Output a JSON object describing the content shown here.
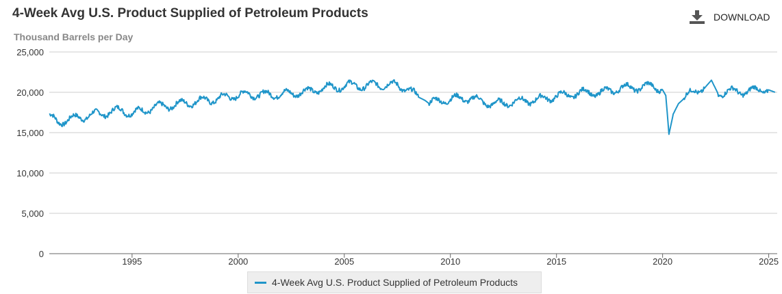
{
  "header": {
    "title": "4-Week Avg U.S. Product Supplied of Petroleum Products",
    "download_label": "DOWNLOAD"
  },
  "colors": {
    "series": "#1f95c9",
    "grid": "#cccccc",
    "axis": "#666666"
  },
  "chart_data": {
    "type": "line",
    "title": "4-Week Avg U.S. Product Supplied of Petroleum Products",
    "ylabel": "Thousand Barrels per Day",
    "xlabel": "",
    "ylim": [
      0,
      25000
    ],
    "xlim": [
      1991.1,
      2025.4
    ],
    "y_ticks": [
      0,
      5000,
      10000,
      15000,
      20000,
      25000
    ],
    "y_tick_labels": [
      "0",
      "5,000",
      "10,000",
      "15,000",
      "20,000",
      "25,000"
    ],
    "x_ticks": [
      1995,
      2000,
      2005,
      2010,
      2015,
      2020,
      2025
    ],
    "x_tick_labels": [
      "1995",
      "2000",
      "2005",
      "2010",
      "2015",
      "2020",
      "2025"
    ],
    "grid": true,
    "legend": "bottom-center",
    "series": [
      {
        "name": "4-Week Avg U.S. Product Supplied of Petroleum Products",
        "x": [
          1991.1,
          1991.5,
          1992.0,
          1992.5,
          1993.0,
          1993.5,
          1994.0,
          1994.5,
          1995.0,
          1995.5,
          1996.0,
          1996.5,
          1997.0,
          1997.5,
          1998.0,
          1998.5,
          1999.0,
          1999.5,
          2000.0,
          2000.5,
          2001.0,
          2001.5,
          2002.0,
          2002.5,
          2003.0,
          2003.5,
          2004.0,
          2004.5,
          2005.0,
          2005.5,
          2006.0,
          2006.5,
          2007.0,
          2007.5,
          2008.0,
          2008.5,
          2008.8,
          2009.0,
          2009.5,
          2010.0,
          2010.5,
          2011.0,
          2011.5,
          2012.0,
          2012.5,
          2013.0,
          2013.5,
          2014.0,
          2014.5,
          2015.0,
          2015.5,
          2016.0,
          2016.5,
          2017.0,
          2017.5,
          2018.0,
          2018.5,
          2019.0,
          2019.5,
          2020.0,
          2020.15,
          2020.3,
          2020.5,
          2020.75,
          2021.0,
          2021.5,
          2022.0,
          2022.3,
          2022.6,
          2023.0,
          2023.5,
          2024.0,
          2024.5,
          2025.0,
          2025.3
        ],
        "values": [
          17000,
          16300,
          16600,
          16900,
          17100,
          17400,
          17500,
          17900,
          17300,
          17800,
          18000,
          18400,
          18300,
          18800,
          18700,
          19200,
          19000,
          19600,
          19500,
          19900,
          19600,
          19800,
          19700,
          19900,
          20000,
          20200,
          20500,
          20700,
          20700,
          21000,
          20600,
          21100,
          20800,
          21000,
          20300,
          19400,
          19000,
          18600,
          19000,
          19100,
          19300,
          19200,
          18900,
          18500,
          18700,
          18800,
          19000,
          19000,
          19300,
          19500,
          19700,
          19800,
          20100,
          19800,
          20300,
          20400,
          20700,
          20500,
          20900,
          20300,
          19600,
          14800,
          17300,
          18600,
          19200,
          20200,
          20600,
          21500,
          19900,
          20000,
          20200,
          20000,
          20400,
          20300,
          20000
        ]
      }
    ]
  }
}
